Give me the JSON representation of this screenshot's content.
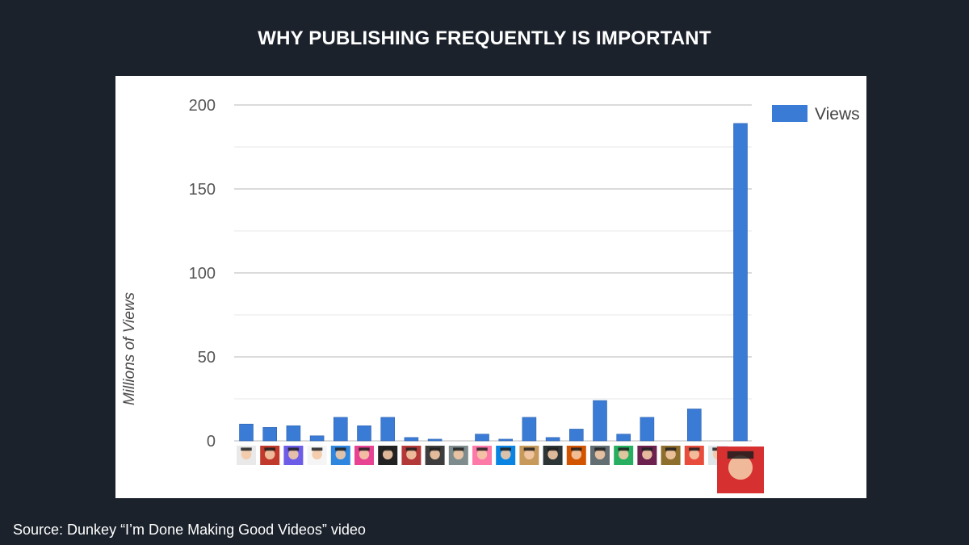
{
  "header": {
    "title": "WHY PUBLISHING FREQUENTLY IS IMPORTANT"
  },
  "footer": {
    "source": "Source: Dunkey “I’m Done Making Good Videos” video"
  },
  "colors": {
    "background": "#1b222c",
    "bar": "#3a7bd5",
    "grid": "#d9d9d9"
  },
  "chart_data": {
    "type": "bar",
    "title": "",
    "xlabel": "",
    "ylabel": "Millions of Views",
    "ylim": [
      0,
      200
    ],
    "yticks": [
      0,
      50,
      100,
      150,
      200
    ],
    "grid": true,
    "legend_position": "top-right",
    "categories_note": "channel avatar images",
    "series": [
      {
        "name": "Views",
        "values": [
          10,
          8,
          9,
          3,
          14,
          9,
          14,
          2,
          1,
          0,
          4,
          1,
          14,
          2,
          7,
          24,
          4,
          14,
          0,
          19,
          0,
          189
        ]
      }
    ]
  }
}
